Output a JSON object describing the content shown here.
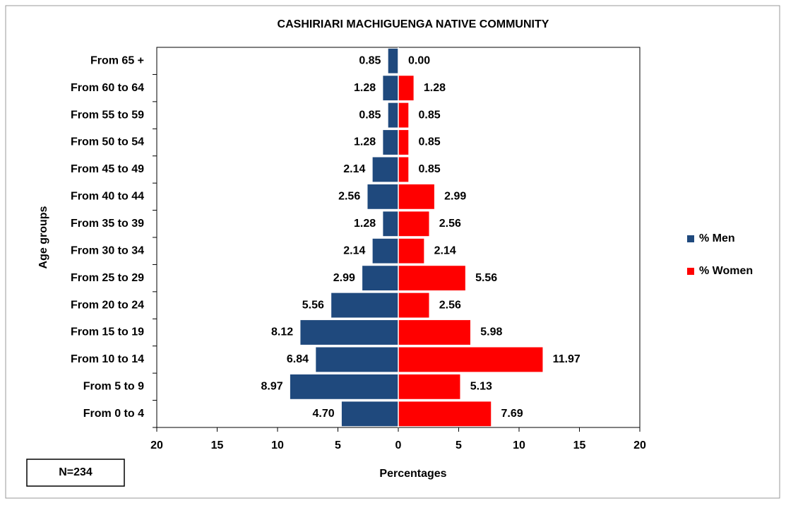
{
  "chart_data": {
    "type": "pyramid",
    "title": "CASHIRIARI MACHIGUENGA NATIVE COMMUNITY",
    "x_label": "Percentages",
    "y_label": "Age groups",
    "annotation": "N=234",
    "categories": [
      "From 0 to 4",
      "From 5 to 9",
      "From 10 to 14",
      "From 15 to 19",
      "From 20 to 24",
      "From 25 to 29",
      "From 30 to 34",
      "From 35 to 39",
      "From 40 to 44",
      "From 45 to 49",
      "From 50 to 54",
      "From 55 to 59",
      "From 60 to 64",
      "From 65 +"
    ],
    "series": [
      {
        "name": "% Men",
        "color": "#1f497d",
        "values": [
          4.7,
          8.97,
          6.84,
          8.12,
          5.56,
          2.99,
          2.14,
          1.28,
          2.56,
          2.14,
          1.28,
          0.85,
          1.28,
          0.85
        ],
        "value_labels": [
          "4.70",
          "8.97",
          "6.84",
          "8.12",
          "5.56",
          "2.99",
          "2.14",
          "1.28",
          "2.56",
          "2.14",
          "1.28",
          "0.85",
          "1.28",
          "0.85"
        ]
      },
      {
        "name": "% Women",
        "color": "#ff0000",
        "values": [
          7.69,
          5.13,
          11.97,
          5.98,
          2.56,
          5.56,
          2.14,
          2.56,
          2.99,
          0.85,
          0.85,
          0.85,
          1.28,
          0
        ],
        "value_labels": [
          "7.69",
          "5.13",
          "11.97",
          "5.98",
          "2.56",
          "5.56",
          "2.14",
          "2.56",
          "2.99",
          "0.85",
          "0.85",
          "0.85",
          "1.28",
          "0.00"
        ]
      }
    ],
    "xlim": [
      -20,
      20
    ],
    "xticks": [
      {
        "value": -20,
        "label": "20"
      },
      {
        "value": -15,
        "label": "15"
      },
      {
        "value": -10,
        "label": "10"
      },
      {
        "value": -5,
        "label": "5"
      },
      0,
      5,
      10,
      15,
      20
    ],
    "legend": "right"
  }
}
